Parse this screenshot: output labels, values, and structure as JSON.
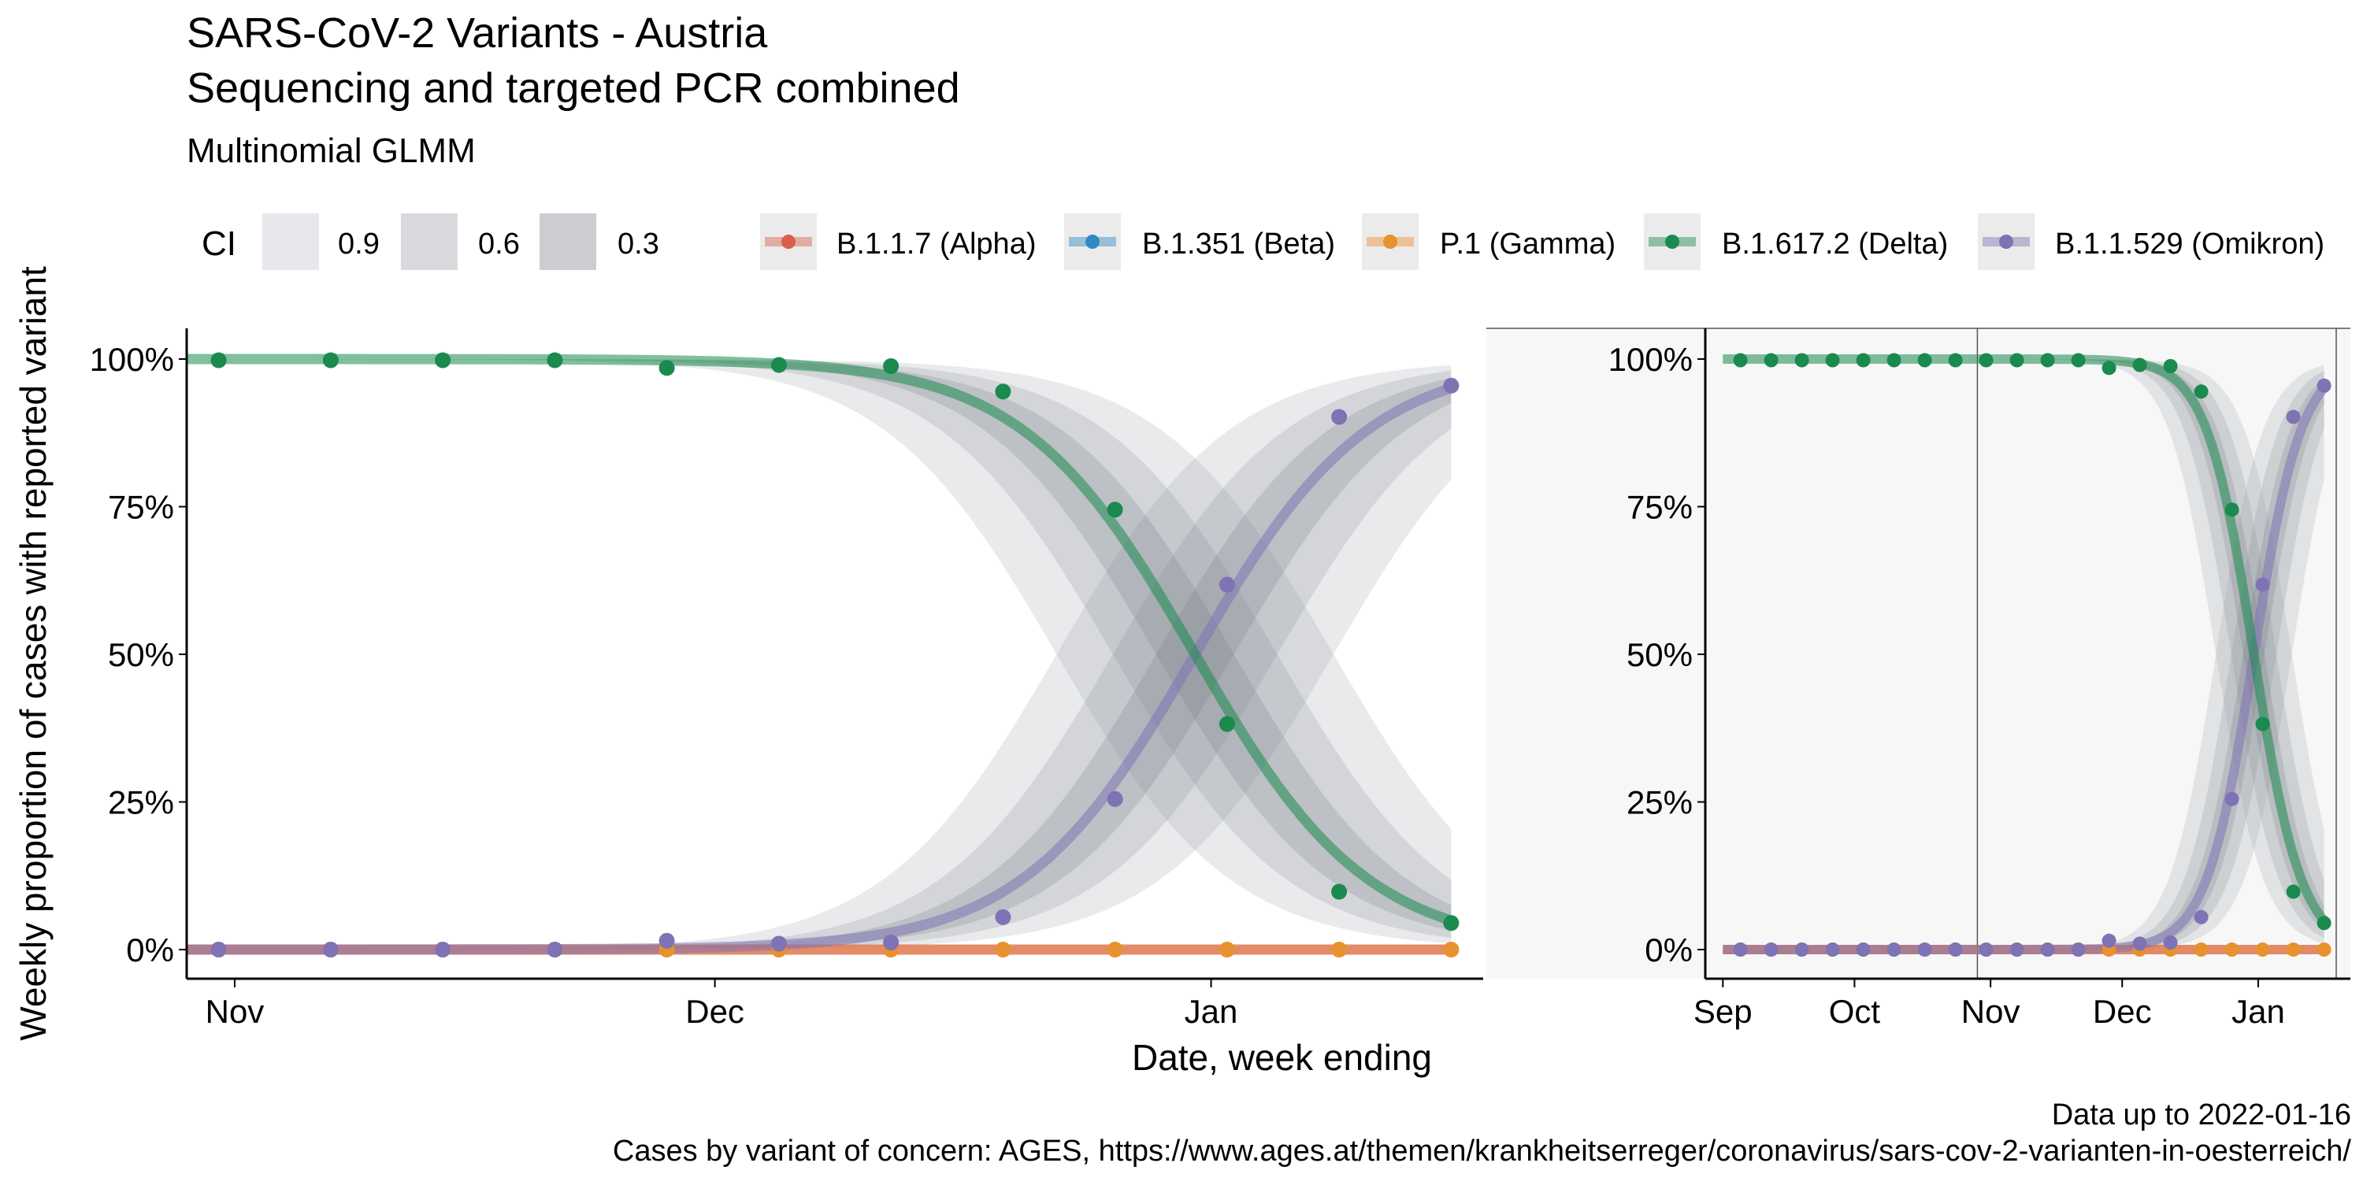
{
  "title": "SARS-CoV-2 Variants - Austria",
  "subtitle_line": "Sequencing and targeted PCR combined",
  "model_label": "Multinomial GLMM",
  "ci_legend": {
    "title": "CI",
    "levels": [
      "0.9",
      "0.6",
      "0.3"
    ]
  },
  "variant_legend": [
    {
      "label": "B.1.1.7 (Alpha)",
      "color": "#d95f4a"
    },
    {
      "label": "B.1.351 (Beta)",
      "color": "#2f8ac4"
    },
    {
      "label": "P.1 (Gamma)",
      "color": "#e8912f"
    },
    {
      "label": "B.1.617.2 (Delta)",
      "color": "#1a8a4f"
    },
    {
      "label": "B.1.1.529 (Omikron)",
      "color": "#7e73b5"
    }
  ],
  "y_axis_label": "Weekly proportion of cases with reported variant",
  "x_axis_label": "Date, week ending",
  "footer": {
    "data_note": "Data up to 2022-01-16",
    "source": "Cases by variant of concern: AGES, https://www.ages.at/themen/krankheitserreger/coronavirus/sars-cov-2-varianten-in-oesterreich/"
  },
  "chart_data": [
    {
      "type": "line",
      "panel": "main",
      "x_range": [
        "2021-10-29",
        "2022-01-18"
      ],
      "ylim": [
        0,
        1
      ],
      "y_ticks": [
        "0%",
        "25%",
        "50%",
        "75%",
        "100%"
      ],
      "y_tick_values": [
        0,
        0.25,
        0.5,
        0.75,
        1
      ],
      "x_ticks": [
        {
          "date": "2021-11-01",
          "label": "Nov"
        },
        {
          "date": "2021-12-01",
          "label": "Dec"
        },
        {
          "date": "2022-01-01",
          "label": "Jan"
        }
      ],
      "fit": {
        "midpoint": "2021-12-31",
        "rate_per_day": 0.185,
        "start": "2021-10-29",
        "end": "2022-01-16"
      },
      "ci_half_width_logit": [
        1.6,
        0.95,
        0.45
      ],
      "points_x": [
        "2021-10-31",
        "2021-11-07",
        "2021-11-14",
        "2021-11-21",
        "2021-11-28",
        "2021-12-05",
        "2021-12-12",
        "2021-12-19",
        "2021-12-26",
        "2022-01-02",
        "2022-01-09",
        "2022-01-16"
      ],
      "series": [
        {
          "name": "B.1.617.2 (Delta)",
          "values": [
            0.998,
            0.998,
            0.998,
            0.998,
            0.985,
            0.99,
            0.988,
            0.945,
            0.745,
            0.382,
            0.098,
            0.045
          ]
        },
        {
          "name": "B.1.1.529 (Omikron)",
          "values": [
            0.0,
            0.0,
            0.0,
            0.0,
            0.015,
            0.01,
            0.012,
            0.055,
            0.255,
            0.618,
            0.902,
            0.955
          ]
        },
        {
          "name": "P.1 (Gamma)",
          "values": [
            0.0,
            0.0,
            0.0,
            0.0,
            0.0,
            0.0,
            0.0,
            0.0,
            0.0,
            0.0,
            0.0,
            0.0
          ]
        }
      ]
    },
    {
      "type": "line",
      "panel": "overview",
      "x_range": [
        "2021-08-28",
        "2022-01-22"
      ],
      "ylim": [
        0,
        1
      ],
      "y_ticks": [
        "0%",
        "25%",
        "50%",
        "75%",
        "100%"
      ],
      "y_tick_values": [
        0,
        0.25,
        0.5,
        0.75,
        1
      ],
      "x_ticks": [
        {
          "date": "2021-09-01",
          "label": "Sep"
        },
        {
          "date": "2021-10-01",
          "label": "Oct"
        },
        {
          "date": "2021-11-01",
          "label": "Nov"
        },
        {
          "date": "2021-12-01",
          "label": "Dec"
        },
        {
          "date": "2022-01-01",
          "label": "Jan"
        }
      ],
      "highlight_start": "2021-10-29",
      "fit": {
        "midpoint": "2021-12-31",
        "rate_per_day": 0.185,
        "start": "2021-09-01",
        "end": "2022-01-16"
      },
      "ci_half_width_logit": [
        1.6,
        0.95,
        0.45
      ],
      "points_x": [
        "2021-09-05",
        "2021-09-12",
        "2021-09-19",
        "2021-09-26",
        "2021-10-03",
        "2021-10-10",
        "2021-10-17",
        "2021-10-24",
        "2021-10-31",
        "2021-11-07",
        "2021-11-14",
        "2021-11-21",
        "2021-11-28",
        "2021-12-05",
        "2021-12-12",
        "2021-12-19",
        "2021-12-26",
        "2022-01-02",
        "2022-01-09",
        "2022-01-16"
      ],
      "series": [
        {
          "name": "B.1.617.2 (Delta)",
          "values": [
            0.998,
            0.998,
            0.998,
            0.998,
            0.998,
            0.998,
            0.998,
            0.998,
            0.998,
            0.998,
            0.998,
            0.998,
            0.985,
            0.99,
            0.988,
            0.945,
            0.745,
            0.382,
            0.098,
            0.045
          ]
        },
        {
          "name": "B.1.1.529 (Omikron)",
          "values": [
            0.0,
            0.0,
            0.0,
            0.0,
            0.0,
            0.0,
            0.0,
            0.0,
            0.0,
            0.0,
            0.0,
            0.0,
            0.015,
            0.01,
            0.012,
            0.055,
            0.255,
            0.618,
            0.902,
            0.955
          ]
        },
        {
          "name": "P.1 (Gamma)",
          "values": [
            0.0,
            0.0,
            0.0,
            0.0,
            0.0,
            0.0,
            0.0,
            0.0,
            0.0,
            0.0,
            0.0,
            0.0,
            0.0,
            0.0,
            0.0,
            0.0,
            0.0,
            0.0,
            0.0,
            0.0
          ]
        }
      ]
    }
  ]
}
